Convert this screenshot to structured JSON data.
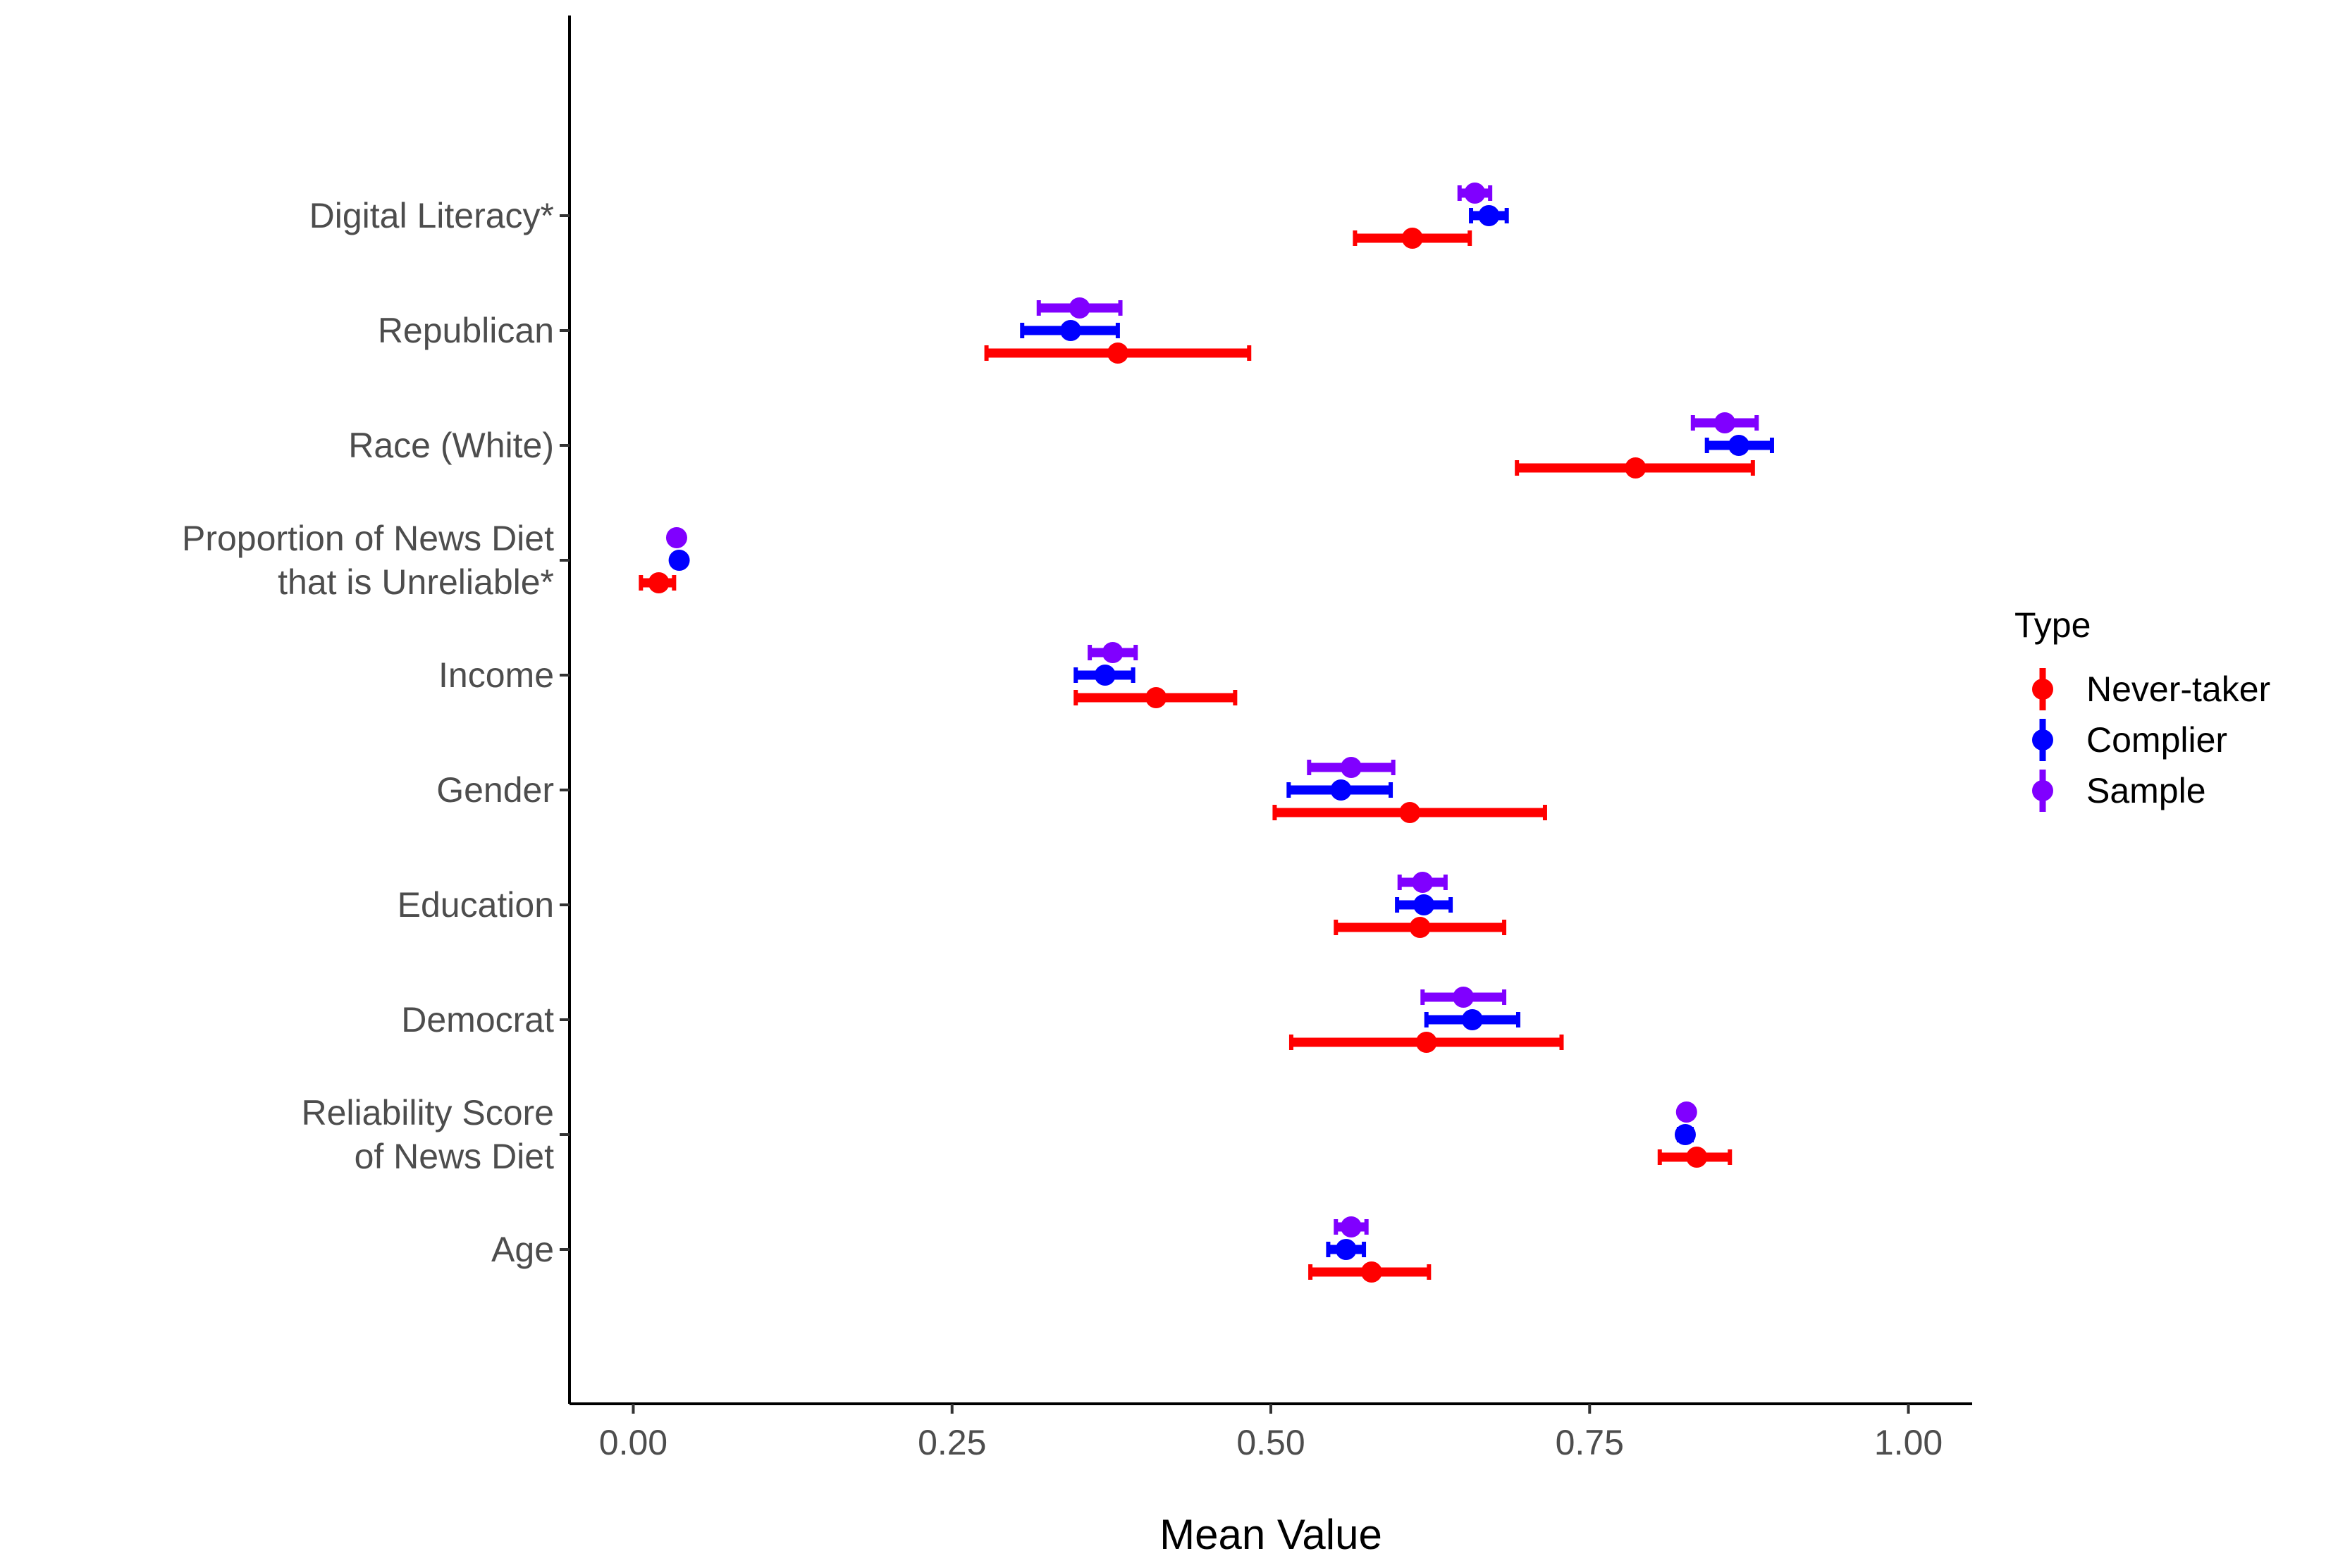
{
  "chart_data": {
    "type": "scatter",
    "xlabel": "Mean Value",
    "ylabel": "",
    "xlim": [
      -0.05,
      1.05
    ],
    "x_ticks": [
      "0.00",
      "0.25",
      "0.50",
      "0.75",
      "1.00"
    ],
    "x_tick_values": [
      0,
      0.25,
      0.5,
      0.75,
      1.0
    ],
    "grid": false,
    "legend_position": "right",
    "legend_title": "Type",
    "categories": [
      {
        "label": [
          "Age"
        ]
      },
      {
        "label": [
          "Reliability Score",
          "of News Diet"
        ]
      },
      {
        "label": [
          "Democrat"
        ]
      },
      {
        "label": [
          "Education"
        ]
      },
      {
        "label": [
          "Gender"
        ]
      },
      {
        "label": [
          "Income"
        ]
      },
      {
        "label": [
          "Proportion of News Diet",
          "that is Unreliable*"
        ]
      },
      {
        "label": [
          "Race (White)"
        ]
      },
      {
        "label": [
          "Republican"
        ]
      },
      {
        "label": [
          "Digital Literacy*"
        ]
      }
    ],
    "series": [
      {
        "name": "Never-taker",
        "color": "#ff0000",
        "points": [
          {
            "mean": 0.579,
            "lo": 0.531,
            "hi": 0.624
          },
          {
            "mean": 0.834,
            "lo": 0.805,
            "hi": 0.86
          },
          {
            "mean": 0.622,
            "lo": 0.516,
            "hi": 0.728
          },
          {
            "mean": 0.617,
            "lo": 0.551,
            "hi": 0.683
          },
          {
            "mean": 0.609,
            "lo": 0.503,
            "hi": 0.715
          },
          {
            "mean": 0.41,
            "lo": 0.347,
            "hi": 0.472
          },
          {
            "mean": 0.02,
            "lo": 0.006,
            "hi": 0.032
          },
          {
            "mean": 0.786,
            "lo": 0.693,
            "hi": 0.878
          },
          {
            "mean": 0.38,
            "lo": 0.277,
            "hi": 0.483
          },
          {
            "mean": 0.611,
            "lo": 0.566,
            "hi": 0.656
          }
        ]
      },
      {
        "name": "Complier",
        "color": "#0000ff",
        "points": [
          {
            "mean": 0.559,
            "lo": 0.545,
            "hi": 0.573
          },
          {
            "mean": 0.825,
            "lo": 0.82,
            "hi": 0.83
          },
          {
            "mean": 0.658,
            "lo": 0.622,
            "hi": 0.694
          },
          {
            "mean": 0.62,
            "lo": 0.599,
            "hi": 0.641
          },
          {
            "mean": 0.555,
            "lo": 0.514,
            "hi": 0.594
          },
          {
            "mean": 0.37,
            "lo": 0.347,
            "hi": 0.392
          },
          {
            "mean": 0.036,
            "lo": 0.032,
            "hi": 0.04
          },
          {
            "mean": 0.867,
            "lo": 0.842,
            "hi": 0.893
          },
          {
            "mean": 0.343,
            "lo": 0.305,
            "hi": 0.38
          },
          {
            "mean": 0.671,
            "lo": 0.657,
            "hi": 0.685
          }
        ]
      },
      {
        "name": "Sample",
        "color": "#8000ff",
        "points": [
          {
            "mean": 0.563,
            "lo": 0.551,
            "hi": 0.575
          },
          {
            "mean": 0.826,
            "lo": 0.822,
            "hi": 0.83
          },
          {
            "mean": 0.651,
            "lo": 0.619,
            "hi": 0.683
          },
          {
            "mean": 0.619,
            "lo": 0.601,
            "hi": 0.637
          },
          {
            "mean": 0.563,
            "lo": 0.53,
            "hi": 0.596
          },
          {
            "mean": 0.376,
            "lo": 0.358,
            "hi": 0.394
          },
          {
            "mean": 0.034,
            "lo": 0.031,
            "hi": 0.037
          },
          {
            "mean": 0.856,
            "lo": 0.831,
            "hi": 0.881
          },
          {
            "mean": 0.35,
            "lo": 0.318,
            "hi": 0.382
          },
          {
            "mean": 0.66,
            "lo": 0.648,
            "hi": 0.672
          }
        ]
      }
    ]
  }
}
